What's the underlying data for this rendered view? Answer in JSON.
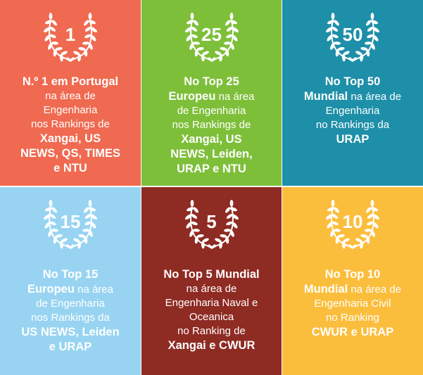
{
  "colors": {
    "tile1": "#EF6A50",
    "tile2": "#7EBF3A",
    "tile3": "#1E8FA8",
    "tile4": "#98D4F2",
    "tile5": "#8E2B23",
    "tile6": "#FBBE3C"
  },
  "icon": "laurel-wreath-icon",
  "tiles": [
    {
      "number": "1",
      "lines": [
        {
          "bold": "N.º 1 em Portugal",
          "normal": ""
        },
        {
          "bold": "",
          "normal": "na área de"
        },
        {
          "bold": "",
          "normal": "Engenharia"
        },
        {
          "bold": "",
          "normal": "nos Rankings de"
        },
        {
          "bold": "Xangai, US",
          "normal": ""
        },
        {
          "bold": "NEWS, QS, TIMES",
          "normal": ""
        },
        {
          "bold": "e NTU",
          "normal": ""
        }
      ]
    },
    {
      "number": "25",
      "lines": [
        {
          "bold": "No Top 25",
          "normal": ""
        },
        {
          "bold": "Europeu",
          "normal": " na área"
        },
        {
          "bold": "",
          "normal": "de Engenharia"
        },
        {
          "bold": "",
          "normal": "nos Rankings de"
        },
        {
          "bold": "Xangai, US",
          "normal": ""
        },
        {
          "bold": "NEWS, Leiden,",
          "normal": ""
        },
        {
          "bold": "URAP e NTU",
          "normal": ""
        }
      ]
    },
    {
      "number": "50",
      "lines": [
        {
          "bold": "No Top 50",
          "normal": ""
        },
        {
          "bold": "Mundial",
          "normal": " na área de"
        },
        {
          "bold": "",
          "normal": "Engenharia"
        },
        {
          "bold": "",
          "normal": "no Rankings da"
        },
        {
          "bold": "URAP",
          "normal": ""
        }
      ]
    },
    {
      "number": "15",
      "lines": [
        {
          "bold": "No Top 15",
          "normal": ""
        },
        {
          "bold": "Europeu",
          "normal": " na área"
        },
        {
          "bold": "",
          "normal": "de Engenharia"
        },
        {
          "bold": "",
          "normal": "nos Rankings da"
        },
        {
          "bold": "US NEWS, Leiden",
          "normal": ""
        },
        {
          "bold": "e URAP",
          "normal": ""
        }
      ]
    },
    {
      "number": "5",
      "lines": [
        {
          "bold": "No Top 5 Mundial",
          "normal": ""
        },
        {
          "bold": "",
          "normal": "na área de"
        },
        {
          "bold": "",
          "normal": "Engenharia Naval e"
        },
        {
          "bold": "",
          "normal": "Oceanica"
        },
        {
          "bold": "",
          "normal": "no Ranking de"
        },
        {
          "bold": "Xangai e CWUR",
          "normal": ""
        }
      ]
    },
    {
      "number": "10",
      "lines": [
        {
          "bold": "No Top 10",
          "normal": ""
        },
        {
          "bold": "Mundial",
          "normal": " na área de"
        },
        {
          "bold": "",
          "normal": "Engenharia Civil"
        },
        {
          "bold": "",
          "normal": "no Ranking"
        },
        {
          "bold": "CWUR e URAP",
          "normal": ""
        }
      ]
    }
  ]
}
